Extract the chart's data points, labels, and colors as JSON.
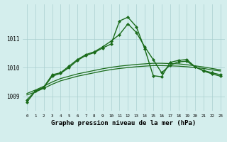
{
  "bg_color": "#d4eeed",
  "grid_color": "#aacfcf",
  "line_color": "#1a6b1a",
  "title": "Graphe pression niveau de la mer (hPa)",
  "title_fontsize": 6.5,
  "xlim": [
    -0.5,
    23.5
  ],
  "ylim": [
    1008.5,
    1012.2
  ],
  "yticks": [
    1009,
    1010,
    1011
  ],
  "xticks": [
    0,
    1,
    2,
    3,
    4,
    5,
    6,
    7,
    8,
    9,
    10,
    11,
    12,
    13,
    14,
    15,
    16,
    17,
    18,
    19,
    20,
    21,
    22,
    23
  ],
  "series": [
    {
      "x": [
        0,
        1,
        2,
        3,
        4,
        5,
        6,
        7,
        8,
        9,
        10,
        11,
        12,
        13,
        14,
        15,
        16,
        17,
        18,
        19,
        20,
        21,
        22,
        23
      ],
      "y": [
        1009.05,
        1009.15,
        1009.28,
        1009.42,
        1009.54,
        1009.62,
        1009.7,
        1009.76,
        1009.82,
        1009.88,
        1009.93,
        1009.97,
        1010.0,
        1010.03,
        1010.05,
        1010.07,
        1010.07,
        1010.06,
        1010.05,
        1010.03,
        1010.0,
        1009.97,
        1009.92,
        1009.88
      ],
      "marker": null,
      "lw": 0.9
    },
    {
      "x": [
        0,
        1,
        2,
        3,
        4,
        5,
        6,
        7,
        8,
        9,
        10,
        11,
        12,
        13,
        14,
        15,
        16,
        17,
        18,
        19,
        20,
        21,
        22,
        23
      ],
      "y": [
        1009.1,
        1009.22,
        1009.35,
        1009.5,
        1009.62,
        1009.7,
        1009.78,
        1009.84,
        1009.9,
        1009.96,
        1010.01,
        1010.05,
        1010.08,
        1010.11,
        1010.13,
        1010.15,
        1010.15,
        1010.14,
        1010.13,
        1010.1,
        1010.06,
        1010.02,
        1009.97,
        1009.92
      ],
      "marker": null,
      "lw": 0.9
    },
    {
      "x": [
        0,
        1,
        2,
        3,
        4,
        5,
        6,
        7,
        8,
        9,
        10,
        11,
        12,
        13,
        14,
        15,
        16,
        17,
        18,
        19,
        20,
        21,
        22,
        23
      ],
      "y": [
        1008.88,
        1009.18,
        1009.32,
        1009.75,
        1009.82,
        1010.05,
        1010.28,
        1010.45,
        1010.55,
        1010.72,
        1010.92,
        1011.15,
        1011.52,
        1011.22,
        1010.72,
        1010.28,
        1009.82,
        1010.08,
        1010.2,
        1010.22,
        1010.02,
        1009.9,
        1009.82,
        1009.75
      ],
      "marker": "D",
      "ms": 2.0,
      "lw": 1.0
    },
    {
      "x": [
        0,
        1,
        2,
        3,
        4,
        5,
        6,
        7,
        8,
        9,
        10,
        11,
        12,
        13,
        14,
        15,
        16,
        17,
        18,
        19,
        20,
        21,
        22,
        23
      ],
      "y": [
        1008.8,
        1009.18,
        1009.3,
        1009.7,
        1009.8,
        1010.0,
        1010.25,
        1010.42,
        1010.52,
        1010.68,
        1010.82,
        1011.62,
        1011.75,
        1011.42,
        1010.65,
        1009.72,
        1009.68,
        1010.18,
        1010.25,
        1010.28,
        1010.02,
        1009.88,
        1009.78,
        1009.7
      ],
      "marker": "D",
      "ms": 2.0,
      "lw": 1.0
    }
  ]
}
